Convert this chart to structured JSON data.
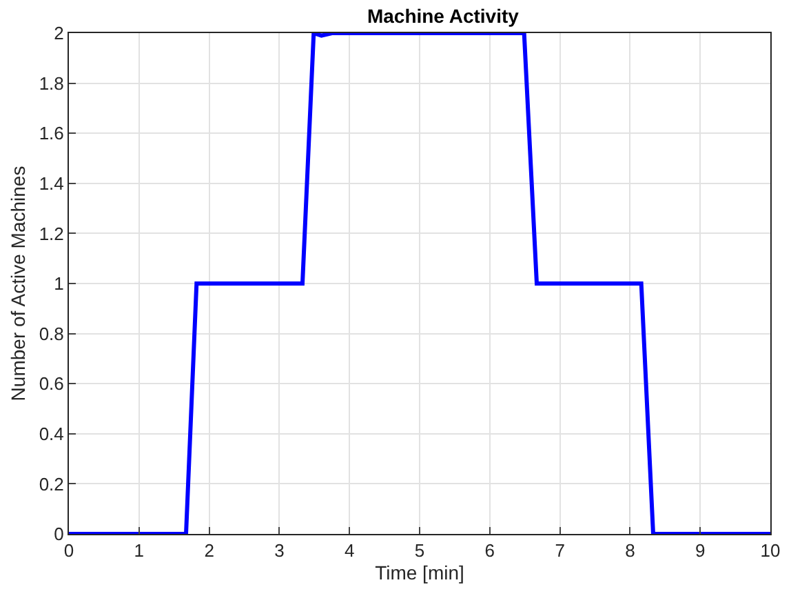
{
  "chart_data": {
    "type": "line",
    "title": "Machine Activity",
    "xlabel": "Time [min]",
    "ylabel": "Number of Active Machines",
    "x": [
      0,
      1.67,
      1.82,
      3.33,
      3.49,
      3.6,
      3.75,
      6.49,
      6.67,
      8.16,
      8.33,
      10
    ],
    "series": [
      {
        "color": "#0000ff",
        "values": [
          0,
          0,
          1,
          1,
          2,
          1.99,
          2,
          2,
          1,
          1,
          0,
          0
        ]
      }
    ],
    "xlim": [
      0,
      10
    ],
    "xticks": [
      0,
      1,
      2,
      3,
      4,
      5,
      6,
      7,
      8,
      9,
      10
    ],
    "ylim": [
      0,
      2
    ],
    "yticks": [
      0,
      0.2,
      0.4,
      0.6,
      0.8,
      1,
      1.2,
      1.4,
      1.6,
      1.8,
      2
    ],
    "grid": true,
    "marker": "none",
    "line_style": "solid"
  }
}
